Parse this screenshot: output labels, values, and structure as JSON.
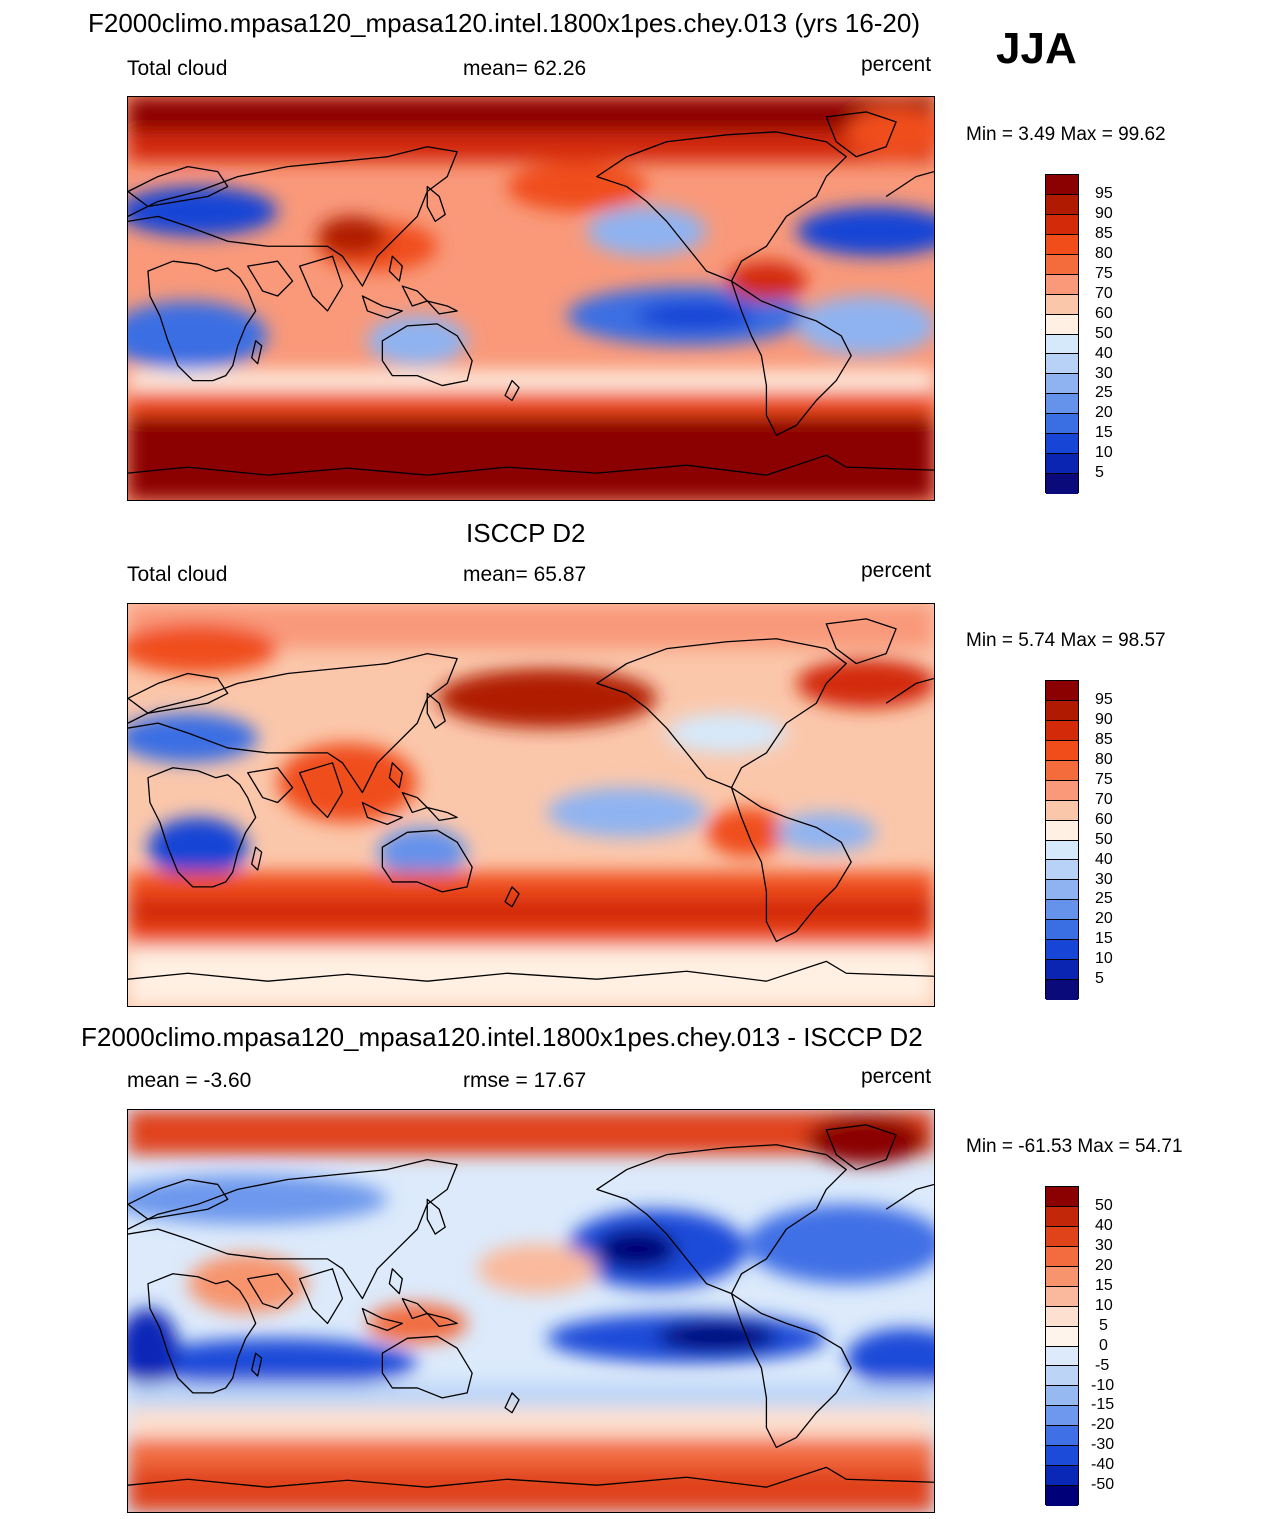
{
  "season": "JJA",
  "colors": {
    "abs": [
      "#8b0000",
      "#b01a00",
      "#d32b0a",
      "#f04d1b",
      "#f46c3c",
      "#f9997a",
      "#fbc7ab",
      "#fff0e3",
      "#d5e9fb",
      "#b7d2f6",
      "#8fb3f1",
      "#6592eb",
      "#3a6ee3",
      "#1745d6",
      "#0b25b3",
      "#0a0a7a"
    ],
    "diff": [
      "#8b0000",
      "#c2270a",
      "#e0421a",
      "#f26c40",
      "#f7946d",
      "#fab99c",
      "#fde0cf",
      "#fff4ec",
      "#dceafb",
      "#bcd5f7",
      "#96b9f2",
      "#6d98ed",
      "#4070e6",
      "#1d4bd9",
      "#0a28b7",
      "#000078"
    ]
  },
  "panels": [
    {
      "id": "model",
      "title": "F2000climo.mpasa120_mpasa120.intel.1800x1pes.chey.013 (yrs 16-20)",
      "left_label": "Total cloud",
      "center_label": "mean=  62.26",
      "units": "percent",
      "minmax": "Min =   3.49 Max =  99.62",
      "colorbar_labels": [
        "95",
        "90",
        "85",
        "80",
        "75",
        "70",
        "60",
        "50",
        "40",
        "30",
        "25",
        "20",
        "15",
        "10",
        "5"
      ]
    },
    {
      "id": "obs",
      "title": "ISCCP D2",
      "left_label": "Total cloud",
      "center_label": "mean=  65.87",
      "units": "percent",
      "minmax": "Min =   5.74 Max =  98.57",
      "colorbar_labels": [
        "95",
        "90",
        "85",
        "80",
        "75",
        "70",
        "60",
        "50",
        "40",
        "30",
        "25",
        "20",
        "15",
        "10",
        "5"
      ]
    },
    {
      "id": "diff",
      "title": "F2000climo.mpasa120_mpasa120.intel.1800x1pes.chey.013 - ISCCP D2",
      "left_label": "mean =  -3.60",
      "center_label": "rmse =  17.67",
      "units": "percent",
      "minmax": "Min = -61.53 Max =  54.71",
      "colorbar_labels": [
        "50",
        "40",
        "30",
        "20",
        "15",
        "10",
        "5",
        "0",
        "-5",
        "-10",
        "-15",
        "-20",
        "-30",
        "-40",
        "-50"
      ]
    }
  ]
}
